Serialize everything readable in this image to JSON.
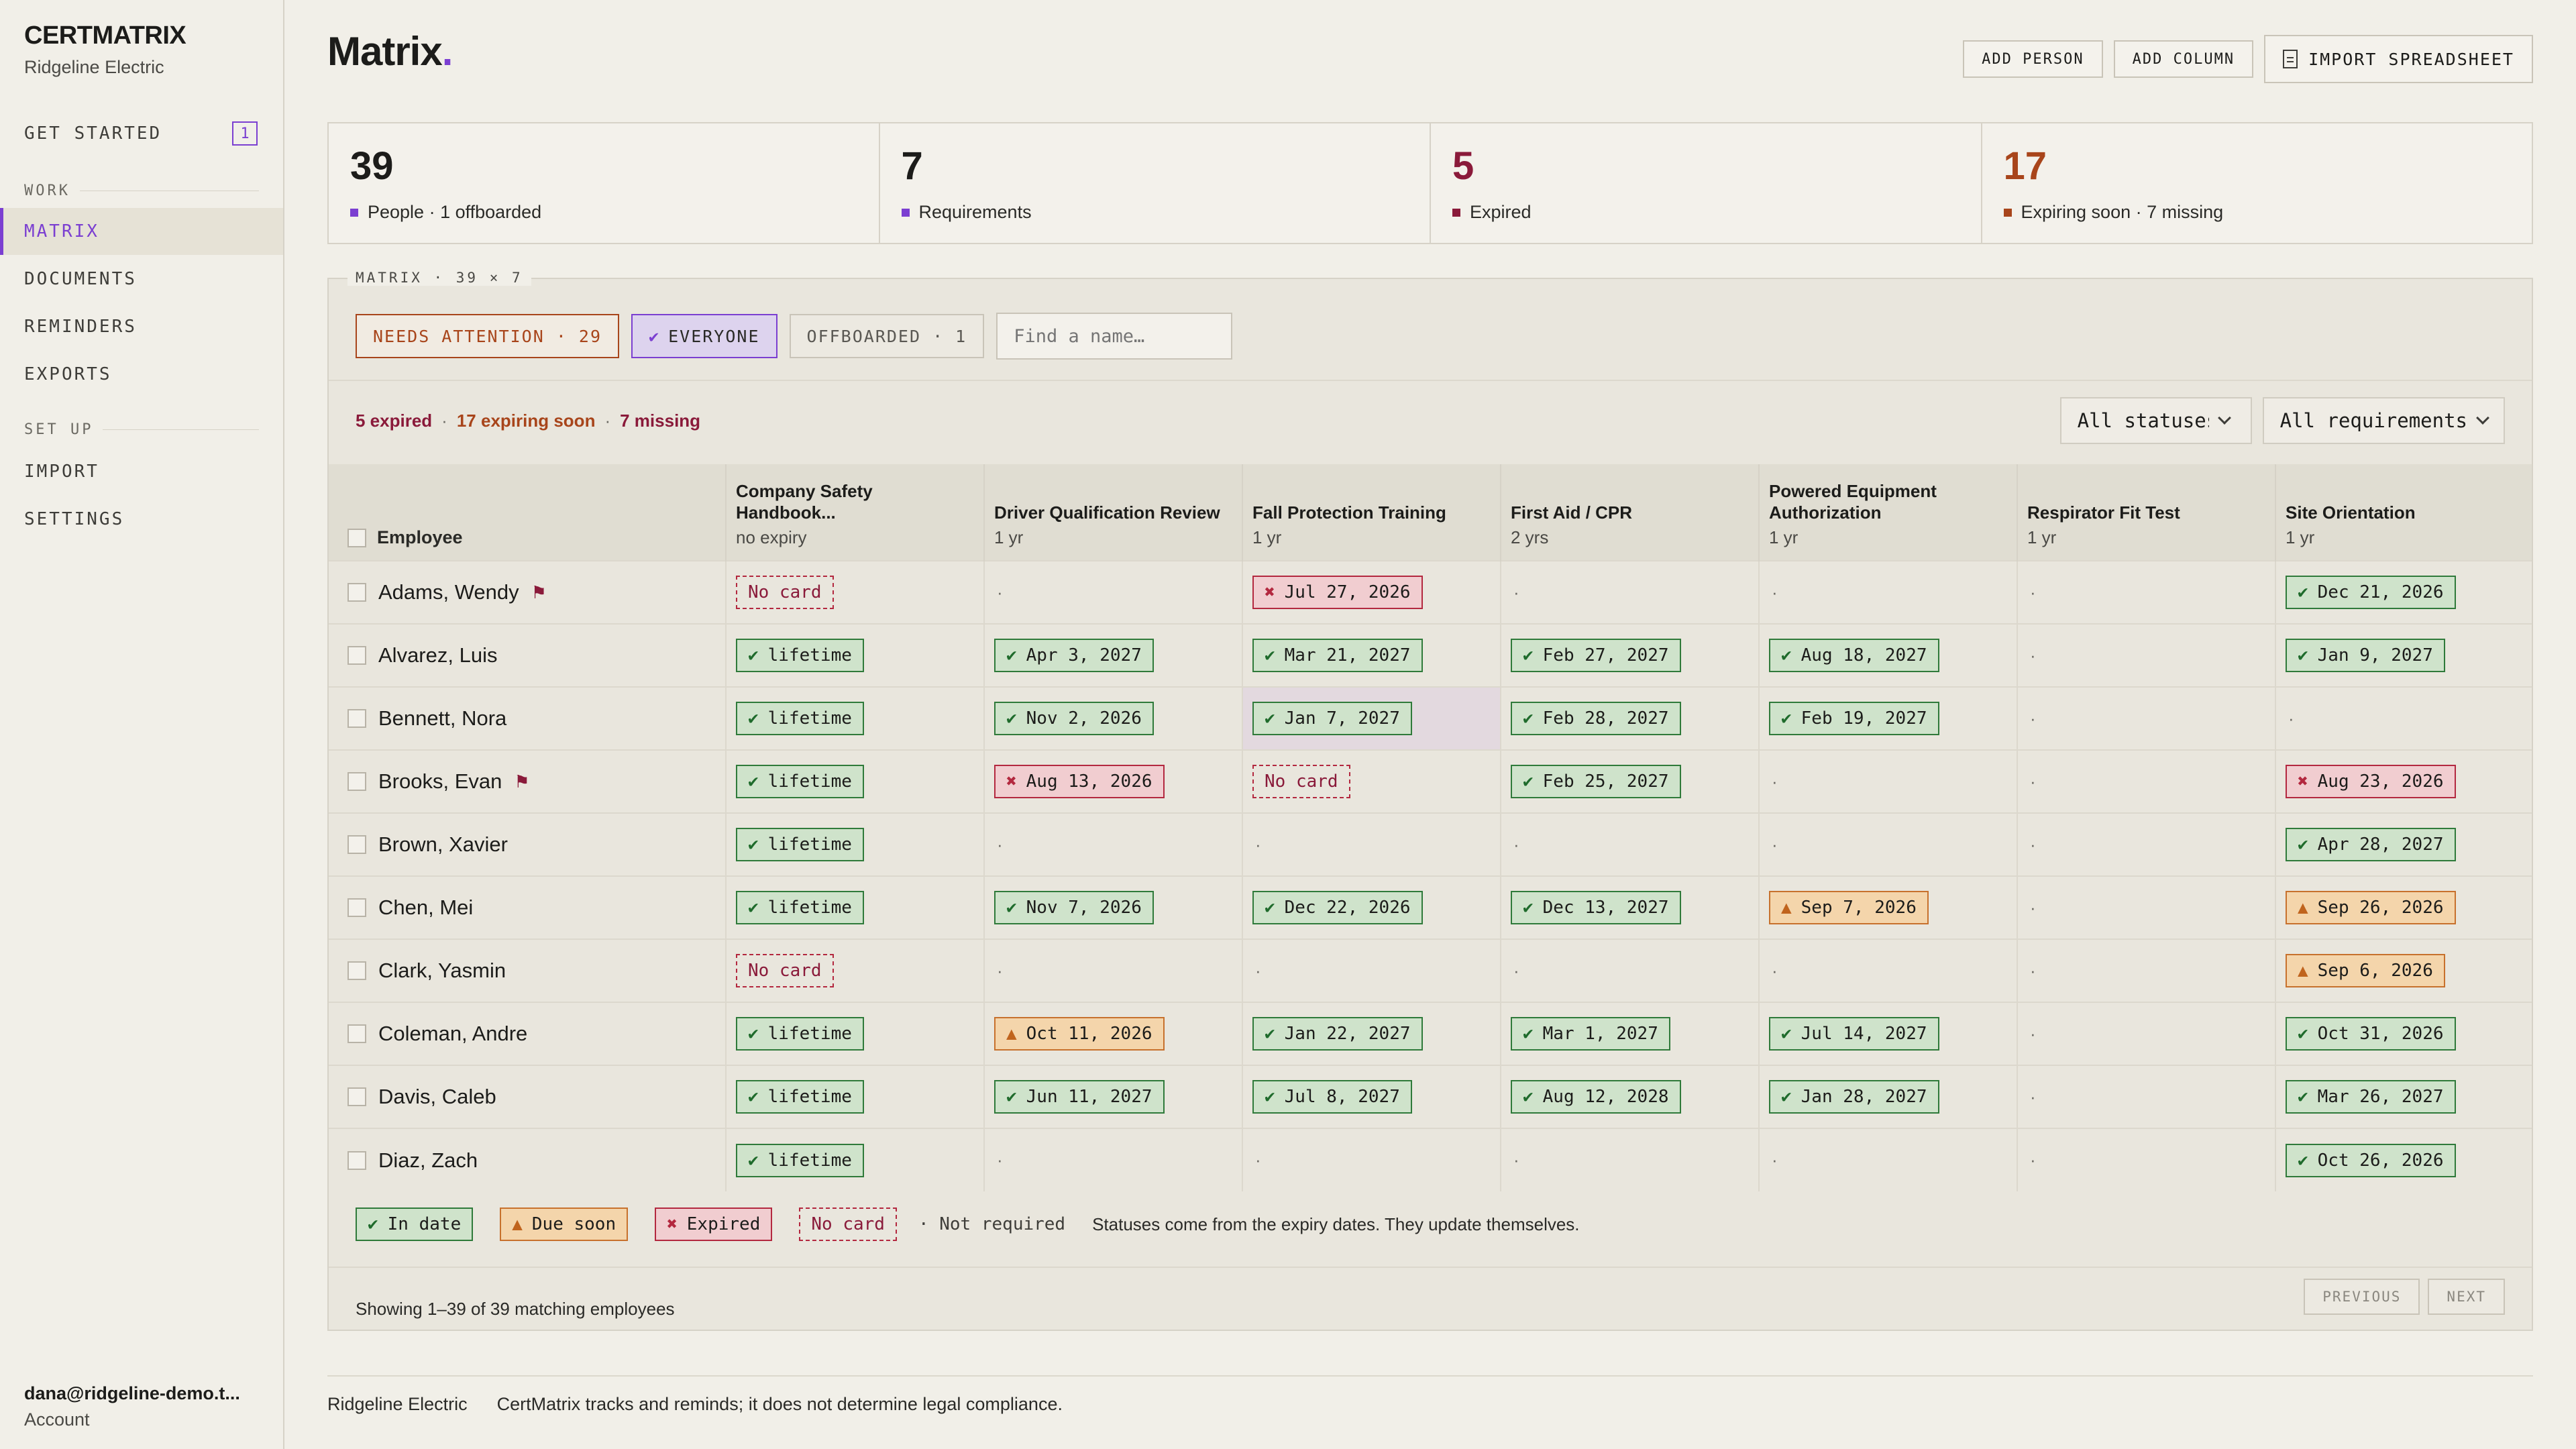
{
  "brand": {
    "name": "CERTMATRIX",
    "org": "Ridgeline Electric"
  },
  "nav": {
    "get_started": "GET STARTED",
    "get_started_badge": "1",
    "section_work": "WORK",
    "matrix": "MATRIX",
    "documents": "DOCUMENTS",
    "reminders": "REMINDERS",
    "exports": "EXPORTS",
    "section_setup": "SET UP",
    "import": "IMPORT",
    "settings": "SETTINGS"
  },
  "account": {
    "email": "dana@ridgeline-demo.t...",
    "label": "Account"
  },
  "header": {
    "title": "Matrix",
    "title_dot": ".",
    "add_person": "ADD PERSON",
    "add_column": "ADD COLUMN",
    "import_spreadsheet": "IMPORT SPREADSHEET"
  },
  "stats": [
    {
      "value": "39",
      "label": "People · 1 offboarded",
      "color": "#1c1c1a",
      "marker": "#7b3fd1"
    },
    {
      "value": "7",
      "label": "Requirements",
      "color": "#1c1c1a",
      "marker": "#7b3fd1"
    },
    {
      "value": "5",
      "label": "Expired",
      "color": "#8a1a3a",
      "marker": "#8a1a3a"
    },
    {
      "value": "17",
      "label": "Expiring soon · 7 missing",
      "color": "#a8451b",
      "marker": "#a8451b"
    }
  ],
  "panel": {
    "legend": "MATRIX · 39 × 7",
    "filters": {
      "needs_attention": "NEEDS ATTENTION · 29",
      "everyone": "EVERYONE",
      "offboarded": "OFFBOARDED · 1",
      "search_placeholder": "Find a name…"
    },
    "summary": {
      "expired": "5 expired",
      "soon": "17 expiring soon",
      "missing": "7 missing",
      "sep": "·"
    },
    "dropdowns": {
      "status": "All statuses",
      "requirements": "All requirements"
    },
    "employee_header": "Employee",
    "columns": [
      {
        "name": "Company Safety Handbook...",
        "sub": "no expiry"
      },
      {
        "name": "Driver Qualification Review",
        "sub": "1 yr"
      },
      {
        "name": "Fall Protection Training",
        "sub": "1 yr"
      },
      {
        "name": "First Aid / CPR",
        "sub": "2 yrs"
      },
      {
        "name": "Powered Equipment Authorization",
        "sub": "1 yr"
      },
      {
        "name": "Respirator Fit Test",
        "sub": "1 yr"
      },
      {
        "name": "Site Orientation",
        "sub": "1 yr"
      }
    ],
    "rows": [
      {
        "name": "Adams, Wendy",
        "flag": true,
        "cells": [
          [
            "nocard",
            "No card"
          ],
          [
            "nr",
            "·"
          ],
          [
            "exp",
            "Jul 27, 2026"
          ],
          [
            "nr",
            "·"
          ],
          [
            "nr",
            "·"
          ],
          [
            "nr",
            "·"
          ],
          [
            "ok",
            "Dec 21, 2026"
          ]
        ]
      },
      {
        "name": "Alvarez, Luis",
        "flag": false,
        "cells": [
          [
            "ok",
            "lifetime"
          ],
          [
            "ok",
            "Apr 3, 2027"
          ],
          [
            "ok",
            "Mar 21, 2027"
          ],
          [
            "ok",
            "Feb 27, 2027"
          ],
          [
            "ok",
            "Aug 18, 2027"
          ],
          [
            "nr",
            "·"
          ],
          [
            "ok",
            "Jan 9, 2027"
          ]
        ]
      },
      {
        "name": "Bennett, Nora",
        "flag": false,
        "cells": [
          [
            "ok",
            "lifetime"
          ],
          [
            "ok",
            "Nov 2, 2026"
          ],
          [
            "ok",
            "Jan 7, 2027",
            "hl"
          ],
          [
            "ok",
            "Feb 28, 2027"
          ],
          [
            "ok",
            "Feb 19, 2027"
          ],
          [
            "nr",
            "·"
          ],
          [
            "nr",
            "·"
          ]
        ]
      },
      {
        "name": "Brooks, Evan",
        "flag": true,
        "cells": [
          [
            "ok",
            "lifetime"
          ],
          [
            "exp",
            "Aug 13, 2026"
          ],
          [
            "nocard",
            "No card"
          ],
          [
            "ok",
            "Feb 25, 2027"
          ],
          [
            "nr",
            "·"
          ],
          [
            "nr",
            "·"
          ],
          [
            "exp",
            "Aug 23, 2026"
          ]
        ]
      },
      {
        "name": "Brown, Xavier",
        "flag": false,
        "cells": [
          [
            "ok",
            "lifetime"
          ],
          [
            "nr",
            "·"
          ],
          [
            "nr",
            "·"
          ],
          [
            "nr",
            "·"
          ],
          [
            "nr",
            "·"
          ],
          [
            "nr",
            "·"
          ],
          [
            "ok",
            "Apr 28, 2027"
          ]
        ]
      },
      {
        "name": "Chen, Mei",
        "flag": false,
        "cells": [
          [
            "ok",
            "lifetime"
          ],
          [
            "ok",
            "Nov 7, 2026"
          ],
          [
            "ok",
            "Dec 22, 2026"
          ],
          [
            "ok",
            "Dec 13, 2027"
          ],
          [
            "soon",
            "Sep 7, 2026"
          ],
          [
            "nr",
            "·"
          ],
          [
            "soon",
            "Sep 26, 2026"
          ]
        ]
      },
      {
        "name": "Clark, Yasmin",
        "flag": false,
        "cells": [
          [
            "nocard",
            "No card"
          ],
          [
            "nr",
            "·"
          ],
          [
            "nr",
            "·"
          ],
          [
            "nr",
            "·"
          ],
          [
            "nr",
            "·"
          ],
          [
            "nr",
            "·"
          ],
          [
            "soon",
            "Sep 6, 2026"
          ]
        ]
      },
      {
        "name": "Coleman, Andre",
        "flag": false,
        "cells": [
          [
            "ok",
            "lifetime"
          ],
          [
            "soon",
            "Oct 11, 2026"
          ],
          [
            "ok",
            "Jan 22, 2027"
          ],
          [
            "ok",
            "Mar 1, 2027"
          ],
          [
            "ok",
            "Jul 14, 2027"
          ],
          [
            "nr",
            "·"
          ],
          [
            "ok",
            "Oct 31, 2026"
          ]
        ]
      },
      {
        "name": "Davis, Caleb",
        "flag": false,
        "cells": [
          [
            "ok",
            "lifetime"
          ],
          [
            "ok",
            "Jun 11, 2027"
          ],
          [
            "ok",
            "Jul 8, 2027"
          ],
          [
            "ok",
            "Aug 12, 2028"
          ],
          [
            "ok",
            "Jan 28, 2027"
          ],
          [
            "nr",
            "·"
          ],
          [
            "ok",
            "Mar 26, 2027"
          ]
        ]
      },
      {
        "name": "Diaz, Zach",
        "flag": false,
        "cells": [
          [
            "ok",
            "lifetime"
          ],
          [
            "nr",
            "·"
          ],
          [
            "nr",
            "·"
          ],
          [
            "nr",
            "·"
          ],
          [
            "nr",
            "·"
          ],
          [
            "nr",
            "·"
          ],
          [
            "ok",
            "Oct 26, 2026"
          ]
        ]
      }
    ],
    "legend_items": {
      "in_date": "In date",
      "due_soon": "Due soon",
      "expired": "Expired",
      "no_card": "No card",
      "not_required": "· Not required",
      "note": "Statuses come from the expiry dates. They update themselves."
    },
    "showing": "Showing 1–39 of 39 matching employees",
    "previous": "PREVIOUS",
    "next": "NEXT"
  },
  "footer": {
    "org": "Ridgeline Electric",
    "disclaimer": "CertMatrix tracks and reminds; it does not determine legal compliance."
  },
  "icons": {
    "ok": "check-icon",
    "exp": "x-icon",
    "soon": "warning-triangle-icon",
    "flag": "flag-icon",
    "doc": "document-icon",
    "chevron": "chevron-down-icon"
  }
}
